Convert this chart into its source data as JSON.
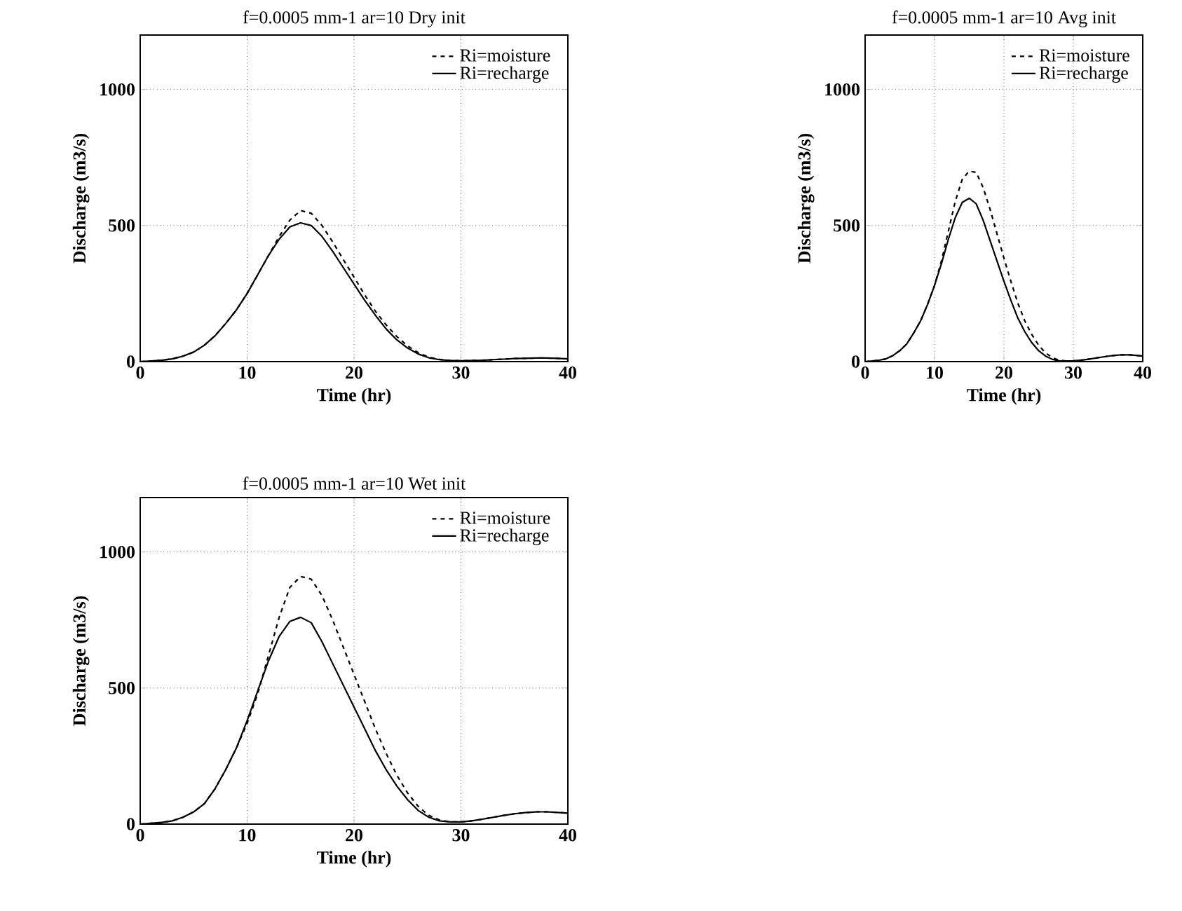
{
  "chart_data": [
    {
      "type": "line",
      "title": "f=0.0005 mm-1 ar=10 Dry init",
      "xlabel": "Time (hr)",
      "ylabel": "Discharge (m3/s)",
      "xlim": [
        0,
        40
      ],
      "ylim": [
        0,
        1200
      ],
      "xticks": [
        0,
        10,
        20,
        30,
        40
      ],
      "yticks": [
        0,
        500,
        1000
      ],
      "grid": true,
      "legend": "top right",
      "x": [
        0,
        1,
        2,
        3,
        4,
        5,
        6,
        7,
        8,
        9,
        10,
        11,
        12,
        13,
        14,
        15,
        16,
        17,
        18,
        19,
        20,
        21,
        22,
        23,
        24,
        25,
        26,
        27,
        28,
        29,
        30,
        31,
        32,
        33,
        34,
        35,
        36,
        37,
        38,
        39,
        40
      ],
      "series": [
        {
          "name": "Ri=moisture",
          "color": "#000000",
          "line_style": "dashed",
          "values": [
            0,
            2,
            5,
            10,
            20,
            35,
            60,
            95,
            140,
            190,
            250,
            320,
            390,
            460,
            520,
            555,
            545,
            500,
            440,
            375,
            310,
            245,
            185,
            135,
            92,
            58,
            33,
            16,
            8,
            4,
            3,
            4,
            5,
            7,
            9,
            11,
            12,
            13,
            13,
            12,
            10
          ]
        },
        {
          "name": "Ri=recharge",
          "color": "#000000",
          "line_style": "solid",
          "values": [
            0,
            2,
            5,
            10,
            20,
            35,
            60,
            95,
            140,
            190,
            250,
            320,
            390,
            450,
            495,
            510,
            500,
            460,
            405,
            345,
            285,
            225,
            170,
            120,
            80,
            50,
            28,
            14,
            7,
            4,
            3,
            4,
            5,
            7,
            9,
            11,
            12,
            13,
            13,
            12,
            10
          ]
        }
      ]
    },
    {
      "type": "line",
      "title": "f=0.0005 mm-1 ar=10 Avg init",
      "xlabel": "Time (hr)",
      "ylabel": "Discharge (m3/s)",
      "xlim": [
        0,
        40
      ],
      "ylim": [
        0,
        1200
      ],
      "xticks": [
        0,
        10,
        20,
        30,
        40
      ],
      "yticks": [
        0,
        500,
        1000
      ],
      "grid": true,
      "legend": "top right",
      "x": [
        0,
        1,
        2,
        3,
        4,
        5,
        6,
        7,
        8,
        9,
        10,
        11,
        12,
        13,
        14,
        15,
        16,
        17,
        18,
        19,
        20,
        21,
        22,
        23,
        24,
        25,
        26,
        27,
        28,
        29,
        30,
        31,
        32,
        33,
        34,
        35,
        36,
        37,
        38,
        39,
        40
      ],
      "series": [
        {
          "name": "Ri=moisture",
          "color": "#000000",
          "line_style": "dashed",
          "values": [
            0,
            2,
            5,
            10,
            22,
            40,
            65,
            105,
            150,
            210,
            280,
            370,
            480,
            590,
            670,
            700,
            695,
            640,
            560,
            470,
            380,
            295,
            215,
            150,
            100,
            60,
            32,
            14,
            5,
            2,
            3,
            5,
            8,
            12,
            16,
            20,
            23,
            25,
            25,
            23,
            20
          ]
        },
        {
          "name": "Ri=recharge",
          "color": "#000000",
          "line_style": "solid",
          "values": [
            0,
            2,
            5,
            10,
            22,
            40,
            65,
            105,
            150,
            210,
            280,
            360,
            450,
            530,
            585,
            600,
            580,
            520,
            445,
            370,
            295,
            225,
            160,
            110,
            70,
            40,
            20,
            8,
            3,
            2,
            3,
            5,
            8,
            12,
            16,
            20,
            23,
            25,
            25,
            23,
            20
          ]
        }
      ]
    },
    {
      "type": "line",
      "title": "f=0.0005 mm-1 ar=10 Wet init",
      "xlabel": "Time (hr)",
      "ylabel": "Discharge (m3/s)",
      "xlim": [
        0,
        40
      ],
      "ylim": [
        0,
        1200
      ],
      "xticks": [
        0,
        10,
        20,
        30,
        40
      ],
      "yticks": [
        0,
        500,
        1000
      ],
      "grid": true,
      "legend": "top right",
      "x": [
        0,
        1,
        2,
        3,
        4,
        5,
        6,
        7,
        8,
        9,
        10,
        11,
        12,
        13,
        14,
        15,
        16,
        17,
        18,
        19,
        20,
        21,
        22,
        23,
        24,
        25,
        26,
        27,
        28,
        29,
        30,
        31,
        32,
        33,
        34,
        35,
        36,
        37,
        38,
        39,
        40
      ],
      "series": [
        {
          "name": "Ri=moisture",
          "color": "#000000",
          "line_style": "dashed",
          "values": [
            0,
            3,
            6,
            12,
            25,
            45,
            75,
            130,
            200,
            280,
            370,
            480,
            620,
            760,
            870,
            910,
            900,
            840,
            750,
            650,
            550,
            450,
            350,
            260,
            180,
            115,
            65,
            32,
            15,
            8,
            8,
            12,
            18,
            25,
            32,
            38,
            42,
            45,
            45,
            43,
            40
          ]
        },
        {
          "name": "Ri=recharge",
          "color": "#000000",
          "line_style": "solid",
          "values": [
            0,
            3,
            6,
            12,
            25,
            45,
            75,
            130,
            200,
            280,
            380,
            490,
            600,
            690,
            745,
            760,
            740,
            670,
            590,
            510,
            430,
            350,
            270,
            200,
            140,
            90,
            50,
            25,
            12,
            8,
            8,
            12,
            18,
            25,
            32,
            38,
            42,
            45,
            45,
            43,
            40
          ]
        }
      ]
    }
  ]
}
